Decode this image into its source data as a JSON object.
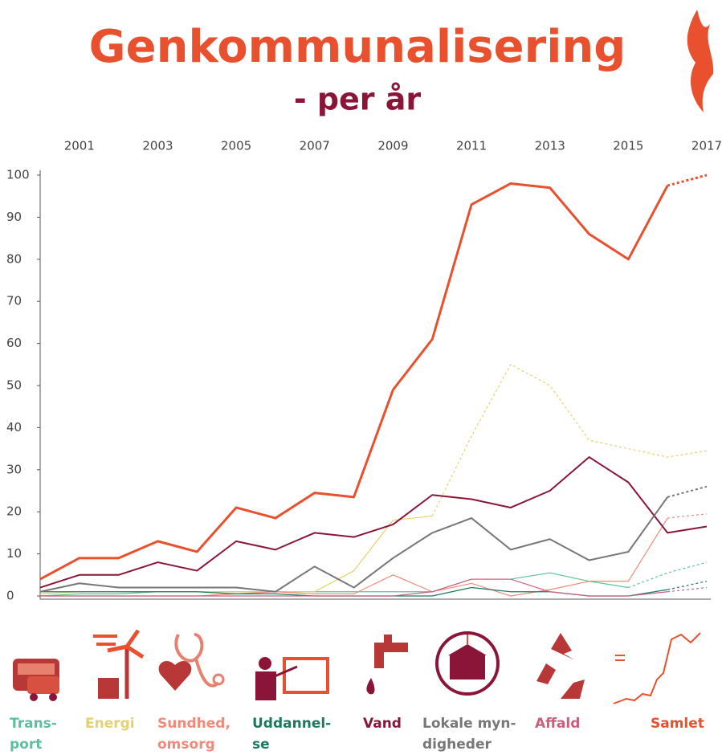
{
  "chart_data": {
    "type": "line",
    "title": "Genkommunalisering",
    "subtitle": "- per år",
    "x": [
      2000,
      2001,
      2002,
      2003,
      2004,
      2005,
      2006,
      2007,
      2008,
      2009,
      2010,
      2011,
      2012,
      2013,
      2014,
      2015,
      2016,
      2017
    ],
    "xlim": [
      2000,
      2017
    ],
    "xticks": [
      2001,
      2003,
      2005,
      2007,
      2009,
      2011,
      2013,
      2015,
      2017
    ],
    "ylim": [
      0,
      100
    ],
    "yticks": [
      0,
      10,
      20,
      30,
      40,
      50,
      60,
      70,
      80,
      90,
      100
    ],
    "series": [
      {
        "name": "Trans-\nport",
        "color": "#5cc0a0",
        "width": 1.2,
        "dotted_from": 2015,
        "values": [
          0,
          0.5,
          0.5,
          1,
          1,
          1,
          1,
          1,
          1,
          1,
          1,
          4,
          4,
          5.5,
          3.5,
          2,
          5.5,
          8
        ]
      },
      {
        "name": "Energi",
        "color": "#e3d26e",
        "width": 1.2,
        "dotted_from": 2010,
        "values": [
          0.5,
          1,
          1,
          1,
          1,
          1,
          1,
          1,
          6,
          18,
          19,
          38,
          55,
          50,
          37,
          35,
          33,
          34.5
        ]
      },
      {
        "name": "Sundhed,\nomsorg",
        "color": "#f08a7a",
        "width": 1.2,
        "dotted_from": 2016,
        "values": [
          0,
          0,
          0,
          0,
          0,
          0.5,
          1,
          0.5,
          0.5,
          5,
          1,
          3,
          0,
          1.5,
          3.5,
          3.5,
          18.5,
          19.5
        ]
      },
      {
        "name": "Uddannel-\nse",
        "color": "#1a7a5e",
        "width": 1.2,
        "dotted_from": 2016,
        "values": [
          1,
          1,
          1,
          1,
          1,
          0.5,
          0.5,
          0,
          0,
          0,
          0,
          2,
          1,
          1,
          0,
          0,
          1.5,
          3.5
        ]
      },
      {
        "name": "Vand",
        "color": "#8b1538",
        "width": 2,
        "dotted_from": 2017,
        "values": [
          2,
          5,
          5,
          8,
          6,
          13,
          11,
          15,
          14,
          17,
          24,
          23,
          21,
          25,
          33,
          27,
          15,
          16.5
        ]
      },
      {
        "name": "Lokale myn-\ndigheder",
        "color": "#777777",
        "width": 2,
        "dotted_from": 2016,
        "values": [
          1,
          3,
          2,
          2,
          2,
          2,
          1,
          7,
          2,
          9,
          15,
          18.5,
          11,
          13.5,
          8.5,
          10.5,
          23.5,
          26
        ]
      },
      {
        "name": "Affald",
        "color": "#c9617e",
        "width": 1.2,
        "dotted_from": 2016,
        "values": [
          0,
          0,
          0,
          0,
          0,
          0,
          0,
          0,
          0,
          0,
          1,
          4,
          4,
          1,
          0,
          0,
          1,
          2
        ]
      },
      {
        "name": "Samlet",
        "color": "#e8502e",
        "width": 3,
        "dotted_from": 2016,
        "values": [
          4,
          9,
          9,
          13,
          10.5,
          21,
          18.5,
          24.5,
          23.5,
          49,
          61,
          93,
          98,
          97,
          86,
          80,
          97.5,
          100
        ]
      }
    ]
  }
}
